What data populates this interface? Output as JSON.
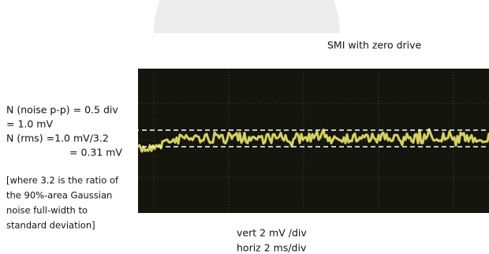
{
  "caption": "SMI with zero drive",
  "noise_lines": [
    "N (noise p-p) = 0.5 div",
    "= 1.0 mV",
    "N (rms) =1.0 mV/3.2",
    "= 0.31 mV"
  ],
  "note_lines": [
    "[where 3.2 is the ratio of",
    "the 90%-area Gaussian",
    "noise full-width to",
    "standard deviation]"
  ],
  "scale_lines": [
    "vert  2 mV /div",
    "horiz  2 ms/div"
  ]
}
